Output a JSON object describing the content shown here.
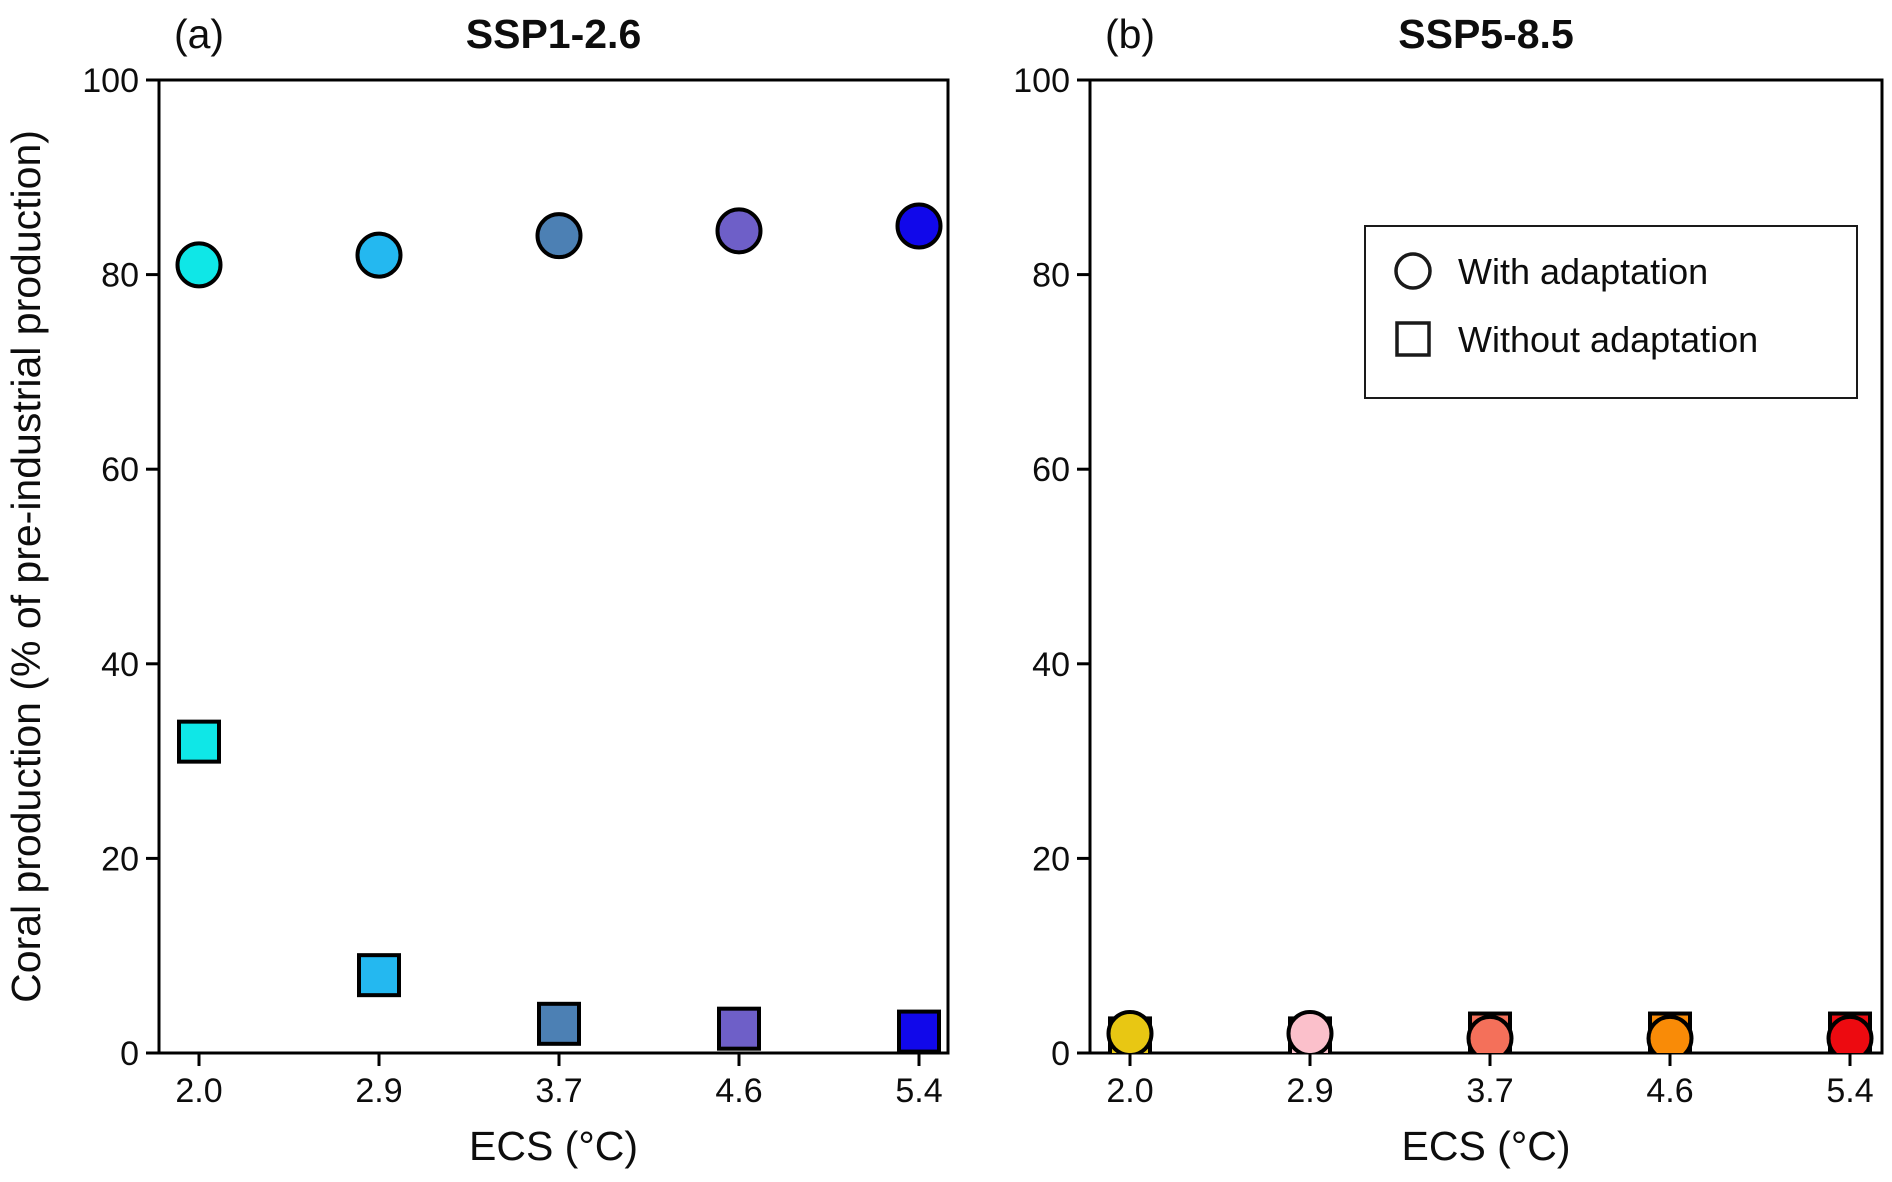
{
  "figure": {
    "background": "#ffffff",
    "text_color": "#0d0d0d",
    "edge_color": "#000000",
    "legend": {
      "position": "upper right of panel b",
      "entries": [
        {
          "marker": "circle",
          "label": "With adaptation"
        },
        {
          "marker": "square",
          "label": "Without adaptation"
        }
      ]
    }
  },
  "chart_data": [
    {
      "type": "scatter",
      "panel_label": "(a)",
      "title": "SSP1-2.6",
      "xlabel": "ECS (°C)",
      "ylabel": "Coral production (% of pre-industrial production)",
      "x": [
        2.0,
        2.9,
        3.7,
        4.6,
        5.4
      ],
      "xtick_labels": [
        "2.0",
        "2.9",
        "3.7",
        "4.6",
        "5.4"
      ],
      "ylim": [
        0,
        100
      ],
      "yticks": [
        0,
        20,
        40,
        60,
        80,
        100
      ],
      "grid": false,
      "legend_shown": false,
      "point_colors": [
        "#0FE7E7",
        "#24B8F0",
        "#4C80B4",
        "#6E5FC8",
        "#1108EA"
      ],
      "series": [
        {
          "name": "With adaptation",
          "marker": "circle",
          "values": [
            81,
            82,
            84,
            84.5,
            85
          ]
        },
        {
          "name": "Without adaptation",
          "marker": "square",
          "values": [
            32,
            8,
            3,
            2.5,
            2.2
          ]
        }
      ]
    },
    {
      "type": "scatter",
      "panel_label": "(b)",
      "title": "SSP5-8.5",
      "xlabel": "ECS (°C)",
      "ylabel": "",
      "x": [
        2.0,
        2.9,
        3.7,
        4.6,
        5.4
      ],
      "xtick_labels": [
        "2.0",
        "2.9",
        "3.7",
        "4.6",
        "5.4"
      ],
      "ylim": [
        0,
        100
      ],
      "yticks": [
        0,
        20,
        40,
        60,
        80,
        100
      ],
      "grid": false,
      "legend_shown": true,
      "point_colors": [
        "#E8C713",
        "#FBC0CB",
        "#F4705A",
        "#F98B07",
        "#ED0A10"
      ],
      "series": [
        {
          "name": "With adaptation",
          "marker": "circle",
          "values": [
            2,
            2,
            1.5,
            1.5,
            1.5
          ]
        },
        {
          "name": "Without adaptation",
          "marker": "square",
          "values": [
            1.5,
            1.5,
            2,
            2,
            2
          ]
        }
      ]
    }
  ]
}
